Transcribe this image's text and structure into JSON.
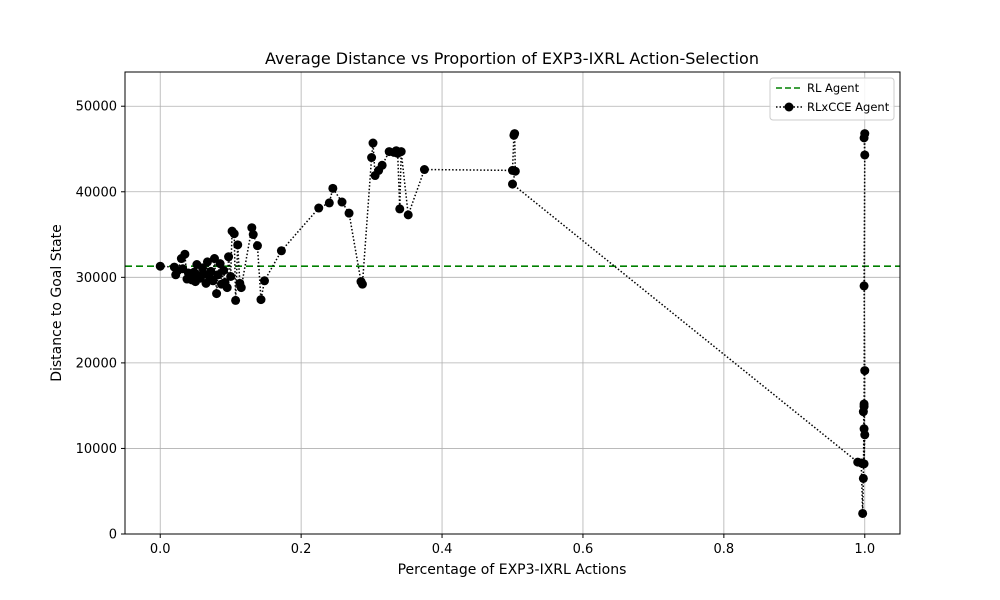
{
  "chart_data": {
    "type": "line",
    "title": "Average Distance vs Proportion of EXP3-IXRL Action-Selection",
    "xlabel": "Percentage of EXP3-IXRL Actions",
    "ylabel": "Distance to Goal State",
    "xlim": [
      -0.05,
      1.05
    ],
    "ylim": [
      0,
      54000
    ],
    "xticks": [
      0.0,
      0.2,
      0.4,
      0.6,
      0.8,
      1.0
    ],
    "xtick_labels": [
      "0.0",
      "0.2",
      "0.4",
      "0.6",
      "0.8",
      "1.0"
    ],
    "yticks": [
      0,
      10000,
      20000,
      30000,
      40000,
      50000
    ],
    "ytick_labels": [
      "0",
      "10000",
      "20000",
      "30000",
      "40000",
      "50000"
    ],
    "grid": true,
    "legend_position": "top-right",
    "reference_line": {
      "name": "RL Agent",
      "y": 31300,
      "color": "#008000",
      "style": "dashed"
    },
    "series": [
      {
        "name": "RLxCCE Agent",
        "color": "#000000",
        "style": "dotted-with-markers",
        "points": [
          [
            0.0,
            31300
          ],
          [
            0.02,
            31200
          ],
          [
            0.022,
            30300
          ],
          [
            0.025,
            30800
          ],
          [
            0.03,
            32200
          ],
          [
            0.032,
            31000
          ],
          [
            0.035,
            32700
          ],
          [
            0.038,
            29800
          ],
          [
            0.04,
            30500
          ],
          [
            0.043,
            30100
          ],
          [
            0.045,
            29700
          ],
          [
            0.048,
            30600
          ],
          [
            0.05,
            29500
          ],
          [
            0.052,
            31500
          ],
          [
            0.055,
            30200
          ],
          [
            0.057,
            29900
          ],
          [
            0.06,
            31100
          ],
          [
            0.062,
            30400
          ],
          [
            0.065,
            29300
          ],
          [
            0.067,
            31800
          ],
          [
            0.07,
            30000
          ],
          [
            0.072,
            30700
          ],
          [
            0.075,
            29600
          ],
          [
            0.077,
            32200
          ],
          [
            0.08,
            28100
          ],
          [
            0.082,
            30300
          ],
          [
            0.085,
            31600
          ],
          [
            0.087,
            29200
          ],
          [
            0.09,
            30800
          ],
          [
            0.092,
            29400
          ],
          [
            0.095,
            28800
          ],
          [
            0.097,
            32400
          ],
          [
            0.1,
            30100
          ],
          [
            0.102,
            35400
          ],
          [
            0.105,
            35100
          ],
          [
            0.107,
            27300
          ],
          [
            0.11,
            33800
          ],
          [
            0.113,
            29300
          ],
          [
            0.115,
            28800
          ],
          [
            0.13,
            35800
          ],
          [
            0.132,
            35000
          ],
          [
            0.138,
            33700
          ],
          [
            0.143,
            27400
          ],
          [
            0.148,
            29600
          ],
          [
            0.172,
            33100
          ],
          [
            0.225,
            38100
          ],
          [
            0.24,
            38700
          ],
          [
            0.245,
            40400
          ],
          [
            0.258,
            38800
          ],
          [
            0.268,
            37500
          ],
          [
            0.285,
            29500
          ],
          [
            0.287,
            29200
          ],
          [
            0.3,
            44000
          ],
          [
            0.302,
            45700
          ],
          [
            0.305,
            41900
          ],
          [
            0.31,
            42500
          ],
          [
            0.315,
            43100
          ],
          [
            0.325,
            44700
          ],
          [
            0.332,
            44600
          ],
          [
            0.335,
            44800
          ],
          [
            0.337,
            44500
          ],
          [
            0.34,
            38000
          ],
          [
            0.342,
            44700
          ],
          [
            0.352,
            37300
          ],
          [
            0.375,
            42600
          ],
          [
            0.5,
            42500
          ],
          [
            0.502,
            46600
          ],
          [
            0.503,
            46800
          ],
          [
            0.504,
            42400
          ],
          [
            0.5,
            40900
          ],
          [
            0.99,
            8400
          ],
          [
            0.995,
            8300
          ],
          [
            0.997,
            2400
          ],
          [
            0.998,
            6500
          ],
          [
            0.999,
            15200
          ],
          [
            0.998,
            14300
          ],
          [
            0.999,
            12300
          ],
          [
            1.0,
            11600
          ],
          [
            0.999,
            8200
          ],
          [
            1.0,
            19100
          ],
          [
            0.999,
            29000
          ],
          [
            1.0,
            44300
          ],
          [
            0.999,
            46300
          ],
          [
            1.0,
            46800
          ],
          [
            0.999,
            14900
          ]
        ]
      }
    ]
  }
}
